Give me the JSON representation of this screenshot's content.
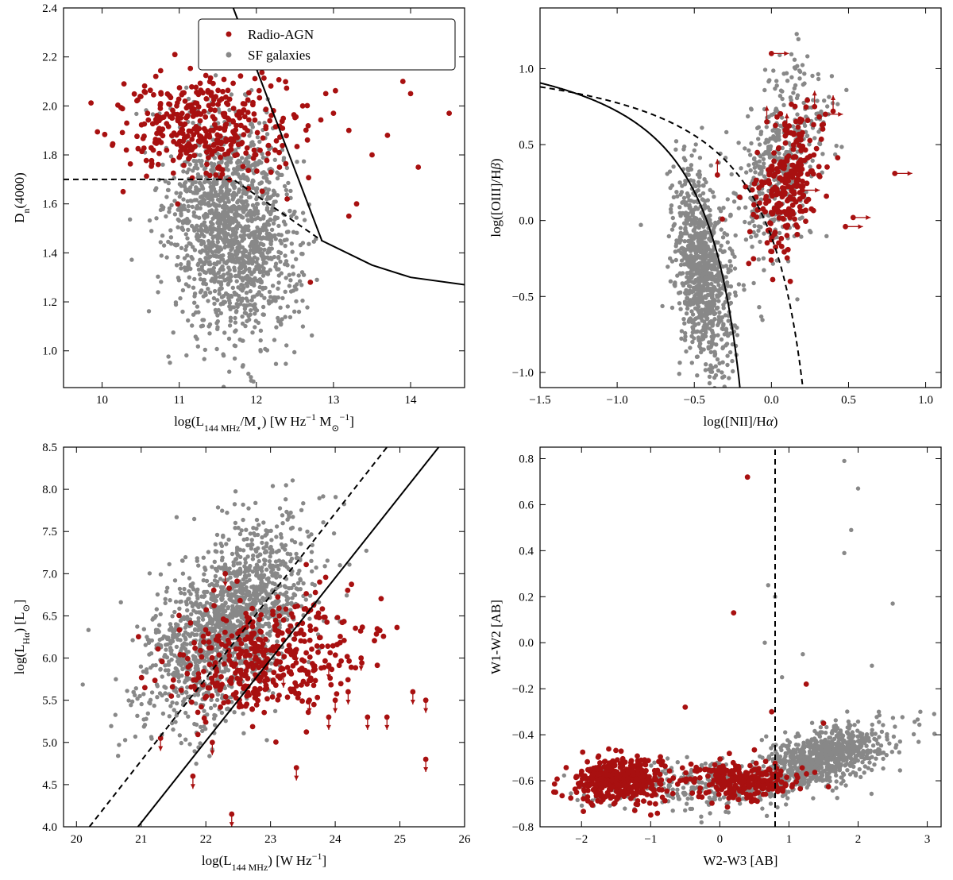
{
  "chart_data": [
    {
      "type": "scatter",
      "id": "dn4000",
      "xlabel": "log(L_144 MHz/M⋆) [W Hz⁻¹ M⊙⁻¹]",
      "ylabel": "Dn(4000)",
      "xlim": [
        9.5,
        14.7
      ],
      "ylim": [
        0.85,
        2.4
      ],
      "xticks": [
        10,
        11,
        12,
        13,
        14
      ],
      "yticks": [
        1.0,
        1.2,
        1.4,
        1.6,
        1.8,
        2.0,
        2.2,
        2.4
      ],
      "ytick_labels": [
        "1.0",
        "1.2",
        "1.4",
        "1.6",
        "1.8",
        "2.0",
        "2.2",
        "2.4"
      ],
      "legend": {
        "position": "top-right",
        "entries": [
          {
            "label": "Radio-AGN",
            "color": "#a81010"
          },
          {
            "label": "SF galaxies",
            "color": "#888888"
          }
        ]
      },
      "series": [
        {
          "name": "SF galaxies",
          "color": "#888888",
          "distribution": {
            "n": 1500,
            "cx": 11.7,
            "cy": 1.5,
            "sx": 0.42,
            "sy": 0.22,
            "slope": -0.1
          }
        },
        {
          "name": "Radio-AGN",
          "color": "#a81010",
          "distribution": {
            "n": 380,
            "cx": 11.3,
            "cy": 1.92,
            "sx": 0.55,
            "sy": 0.1,
            "slope": 0
          }
        },
        {
          "name": "Radio-AGN",
          "color": "#a81010",
          "points": [
            [
              12.6,
              2.0
            ],
            [
              13.0,
              1.97
            ],
            [
              13.2,
              1.9
            ],
            [
              13.5,
              1.8
            ],
            [
              13.7,
              1.88
            ],
            [
              13.9,
              2.1
            ],
            [
              14.0,
              2.05
            ],
            [
              14.1,
              1.75
            ],
            [
              14.5,
              1.97
            ],
            [
              12.9,
              2.05
            ],
            [
              12.3,
              1.75
            ],
            [
              13.3,
              1.6
            ],
            [
              12.7,
              1.28
            ],
            [
              13.2,
              1.55
            ],
            [
              12.4,
              1.62
            ]
          ]
        }
      ],
      "lines": [
        {
          "style": "solid",
          "points": [
            [
              11.7,
              2.4
            ],
            [
              12.85,
              1.45
            ],
            [
              13.5,
              1.35
            ],
            [
              14.0,
              1.3
            ],
            [
              14.7,
              1.27
            ]
          ]
        },
        {
          "style": "dashed",
          "points": [
            [
              9.5,
              1.7
            ],
            [
              11.7,
              1.7
            ],
            [
              12.85,
              1.45
            ]
          ]
        }
      ]
    },
    {
      "type": "scatter",
      "id": "bpt",
      "xlabel": "log([NII]/Hα)",
      "ylabel": "log([OIII]/Hβ)",
      "xlim": [
        -1.5,
        1.1
      ],
      "ylim": [
        -1.1,
        1.4
      ],
      "xticks": [
        -1.5,
        -1.0,
        -0.5,
        0.0,
        0.5,
        1.0
      ],
      "xtick_labels": [
        "−1.5",
        "−1.0",
        "−0.5",
        "0.0",
        "0.5",
        "1.0"
      ],
      "yticks": [
        -1.0,
        -0.5,
        0.0,
        0.5,
        1.0
      ],
      "ytick_labels": [
        "−1.0",
        "−0.5",
        "0.0",
        "0.5",
        "1.0"
      ],
      "series": [
        {
          "name": "SF galaxies",
          "color": "#888888",
          "distribution": {
            "n": 900,
            "cx": -0.45,
            "cy": -0.35,
            "sx": 0.09,
            "sy": 0.3,
            "slope": -1.5
          }
        },
        {
          "name": "SF galaxies",
          "color": "#888888",
          "distribution": {
            "n": 500,
            "cx": 0.05,
            "cy": 0.35,
            "sx": 0.15,
            "sy": 0.3,
            "slope": 1.2
          }
        },
        {
          "name": "Radio-AGN",
          "color": "#a81010",
          "distribution": {
            "n": 260,
            "cx": 0.1,
            "cy": 0.25,
            "sx": 0.12,
            "sy": 0.22,
            "slope": 1.0
          }
        }
      ],
      "limits": [
        {
          "x": 0.8,
          "y": 0.31,
          "dir": "right"
        },
        {
          "x": 0.53,
          "y": 0.02,
          "dir": "right"
        },
        {
          "x": 0.0,
          "y": 1.1,
          "dir": "right"
        },
        {
          "x": 0.35,
          "y": 0.7,
          "dir": "right"
        },
        {
          "x": 0.48,
          "y": -0.04,
          "dir": "right"
        },
        {
          "x": 0.2,
          "y": 0.2,
          "dir": "right"
        },
        {
          "x": -0.35,
          "y": 0.3,
          "dir": "up"
        },
        {
          "x": 0.4,
          "y": 0.72,
          "dir": "up"
        },
        {
          "x": 0.28,
          "y": 0.75,
          "dir": "up"
        },
        {
          "x": 0.1,
          "y": 0.6,
          "dir": "up"
        },
        {
          "x": -0.03,
          "y": 0.65,
          "dir": "up"
        }
      ],
      "lines": [
        {
          "style": "solid",
          "curve": "kauffmann"
        },
        {
          "style": "dashed",
          "curve": "kewley"
        }
      ]
    },
    {
      "type": "scatter",
      "id": "halpha",
      "xlabel": "log(L_144 MHz) [W Hz⁻¹]",
      "ylabel": "log(L_Hα) [L⊙]",
      "xlim": [
        19.8,
        26.0
      ],
      "ylim": [
        4.0,
        8.5
      ],
      "xticks": [
        20,
        21,
        22,
        23,
        24,
        25,
        26
      ],
      "yticks": [
        4.0,
        4.5,
        5.0,
        5.5,
        6.0,
        6.5,
        7.0,
        7.5,
        8.0,
        8.5
      ],
      "ytick_labels": [
        "4.0",
        "4.5",
        "5.0",
        "5.5",
        "6.0",
        "6.5",
        "7.0",
        "7.5",
        "8.0",
        "8.5"
      ],
      "series": [
        {
          "name": "SF galaxies",
          "color": "#888888",
          "distribution": {
            "n": 1500,
            "cx": 22.3,
            "cy": 6.4,
            "sx": 0.65,
            "sy": 0.5,
            "slope": 0.45
          }
        },
        {
          "name": "Radio-AGN",
          "color": "#a81010",
          "distribution": {
            "n": 420,
            "cx": 22.9,
            "cy": 6.0,
            "sx": 0.7,
            "sy": 0.35,
            "slope": 0.12
          }
        }
      ],
      "limits": [
        {
          "x": 21.8,
          "y": 4.6,
          "dir": "down"
        },
        {
          "x": 22.4,
          "y": 4.15,
          "dir": "down"
        },
        {
          "x": 23.4,
          "y": 4.7,
          "dir": "down"
        },
        {
          "x": 25.4,
          "y": 4.8,
          "dir": "down"
        },
        {
          "x": 24.5,
          "y": 5.3,
          "dir": "down"
        },
        {
          "x": 24.8,
          "y": 5.3,
          "dir": "down"
        },
        {
          "x": 25.2,
          "y": 5.6,
          "dir": "down"
        },
        {
          "x": 25.4,
          "y": 5.5,
          "dir": "down"
        },
        {
          "x": 24.2,
          "y": 5.6,
          "dir": "down"
        },
        {
          "x": 23.9,
          "y": 5.3,
          "dir": "down"
        },
        {
          "x": 24.0,
          "y": 5.5,
          "dir": "down"
        },
        {
          "x": 23.6,
          "y": 5.5,
          "dir": "down"
        },
        {
          "x": 23.2,
          "y": 5.8,
          "dir": "down"
        },
        {
          "x": 23.4,
          "y": 6.1,
          "dir": "down"
        },
        {
          "x": 24.4,
          "y": 6.0,
          "dir": "down"
        },
        {
          "x": 23.9,
          "y": 5.9,
          "dir": "down"
        },
        {
          "x": 22.8,
          "y": 5.6,
          "dir": "down"
        },
        {
          "x": 22.1,
          "y": 5.0,
          "dir": "down"
        },
        {
          "x": 21.3,
          "y": 5.05,
          "dir": "down"
        },
        {
          "x": 22.3,
          "y": 7.0,
          "dir": "down"
        }
      ],
      "lines": [
        {
          "style": "solid",
          "points": [
            [
              20.95,
              4.0
            ],
            [
              25.6,
              8.5
            ]
          ]
        },
        {
          "style": "dashed",
          "points": [
            [
              20.2,
              4.0
            ],
            [
              24.8,
              8.5
            ]
          ]
        }
      ]
    },
    {
      "type": "scatter",
      "id": "wise",
      "xlabel": "W2-W3 [AB]",
      "ylabel": "W1-W2 [AB]",
      "xlim": [
        -2.6,
        3.2
      ],
      "ylim": [
        -0.8,
        0.85
      ],
      "xticks": [
        -2,
        -1,
        0,
        1,
        2,
        3
      ],
      "xtick_labels": [
        "−2",
        "−1",
        "0",
        "1",
        "2",
        "3"
      ],
      "yticks": [
        -0.8,
        -0.6,
        -0.4,
        -0.2,
        0.0,
        0.2,
        0.4,
        0.6,
        0.8
      ],
      "ytick_labels": [
        "−0.8",
        "−0.6",
        "−0.4",
        "−0.2",
        "0.0",
        "0.2",
        "0.4",
        "0.6",
        "0.8"
      ],
      "series": [
        {
          "name": "SF galaxies",
          "color": "#888888",
          "distribution": {
            "n": 900,
            "cx": 1.5,
            "cy": -0.5,
            "sx": 0.45,
            "sy": 0.06,
            "slope": 0.08
          }
        },
        {
          "name": "SF galaxies",
          "color": "#888888",
          "distribution": {
            "n": 300,
            "cx": -0.3,
            "cy": -0.62,
            "sx": 0.75,
            "sy": 0.05,
            "slope": 0.0
          }
        },
        {
          "name": "Radio-AGN",
          "color": "#a81010",
          "distribution": {
            "n": 400,
            "cx": -1.45,
            "cy": -0.6,
            "sx": 0.35,
            "sy": 0.05,
            "slope": 0
          }
        },
        {
          "name": "Radio-AGN",
          "color": "#a81010",
          "distribution": {
            "n": 260,
            "cx": 0.3,
            "cy": -0.6,
            "sx": 0.4,
            "sy": 0.04,
            "slope": 0
          }
        },
        {
          "name": "SF galaxies",
          "color": "#888888",
          "points": [
            [
              1.8,
              0.79
            ],
            [
              2.0,
              0.67
            ],
            [
              1.9,
              0.49
            ],
            [
              1.8,
              0.39
            ],
            [
              2.5,
              0.17
            ],
            [
              0.7,
              0.25
            ],
            [
              0.65,
              0.0
            ],
            [
              0.9,
              -0.15
            ],
            [
              1.2,
              -0.05
            ],
            [
              2.3,
              -0.3
            ],
            [
              2.9,
              -0.3
            ],
            [
              3.1,
              -0.31
            ],
            [
              0.8,
              0.2
            ],
            [
              2.2,
              -0.1
            ]
          ]
        },
        {
          "name": "Radio-AGN",
          "color": "#a81010",
          "points": [
            [
              0.4,
              0.72
            ],
            [
              0.2,
              0.13
            ],
            [
              1.25,
              -0.18
            ],
            [
              -0.5,
              -0.28
            ],
            [
              0.75,
              -0.3
            ],
            [
              1.5,
              -0.35
            ]
          ]
        }
      ],
      "lines": [
        {
          "style": "dashed",
          "points": [
            [
              0.8,
              -0.8
            ],
            [
              0.8,
              0.85
            ]
          ]
        }
      ]
    }
  ]
}
